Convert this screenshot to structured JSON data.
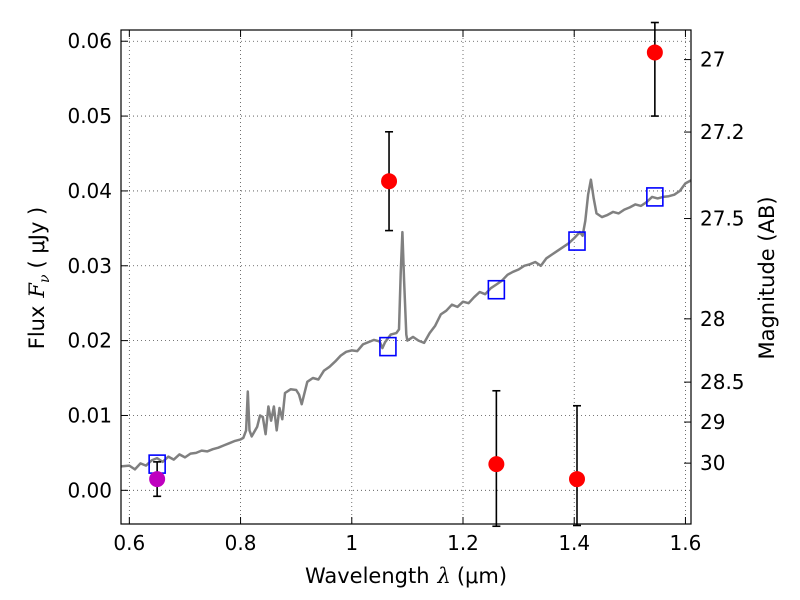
{
  "chart_data": {
    "type": "scatter",
    "xlabel": "Wavelength",
    "xlabel_symbol": "λ",
    "xlabel_unit": "(μm)",
    "ylabel_prefix": "Flux",
    "ylabel_symbol": "F",
    "ylabel_subscript": "ν",
    "ylabel_unit": "( μJy )",
    "ylabel_right": "Magnitude (AB)",
    "xlim": [
      0.585,
      1.61
    ],
    "ylim": [
      -0.0045,
      0.0615
    ],
    "grid": true,
    "xticks": [
      {
        "value": 0.6,
        "label": "0.6"
      },
      {
        "value": 0.8,
        "label": "0.8"
      },
      {
        "value": 1.0,
        "label": "1"
      },
      {
        "value": 1.2,
        "label": "1.2"
      },
      {
        "value": 1.4,
        "label": "1.4"
      },
      {
        "value": 1.6,
        "label": "1.6"
      }
    ],
    "yticks": [
      {
        "value": 0.0,
        "label": "0.00"
      },
      {
        "value": 0.01,
        "label": "0.01"
      },
      {
        "value": 0.02,
        "label": "0.02"
      },
      {
        "value": 0.03,
        "label": "0.03"
      },
      {
        "value": 0.04,
        "label": "0.04"
      },
      {
        "value": 0.05,
        "label": "0.05"
      },
      {
        "value": 0.06,
        "label": "0.06"
      }
    ],
    "right_ticks": [
      {
        "value": 27,
        "label": "27"
      },
      {
        "value": 27.2,
        "label": "27.2"
      },
      {
        "value": 27.5,
        "label": "27.5"
      },
      {
        "value": 28,
        "label": "28"
      },
      {
        "value": 28.5,
        "label": "28.5"
      },
      {
        "value": 29,
        "label": "29"
      },
      {
        "value": 30,
        "label": "30"
      }
    ],
    "model_spectrum": {
      "color": "#808080",
      "points": [
        [
          0.585,
          0.0032
        ],
        [
          0.6,
          0.0033
        ],
        [
          0.61,
          0.0028
        ],
        [
          0.62,
          0.0036
        ],
        [
          0.63,
          0.0033
        ],
        [
          0.64,
          0.004
        ],
        [
          0.65,
          0.0043
        ],
        [
          0.66,
          0.0038
        ],
        [
          0.67,
          0.0045
        ],
        [
          0.68,
          0.0041
        ],
        [
          0.69,
          0.0048
        ],
        [
          0.7,
          0.0044
        ],
        [
          0.71,
          0.0049
        ],
        [
          0.72,
          0.005
        ],
        [
          0.73,
          0.0053
        ],
        [
          0.74,
          0.0052
        ],
        [
          0.75,
          0.0055
        ],
        [
          0.76,
          0.0057
        ],
        [
          0.77,
          0.006
        ],
        [
          0.78,
          0.0063
        ],
        [
          0.79,
          0.0066
        ],
        [
          0.8,
          0.0068
        ],
        [
          0.805,
          0.007
        ],
        [
          0.81,
          0.008
        ],
        [
          0.813,
          0.0132
        ],
        [
          0.816,
          0.008
        ],
        [
          0.82,
          0.0072
        ],
        [
          0.83,
          0.0085
        ],
        [
          0.835,
          0.01
        ],
        [
          0.84,
          0.0098
        ],
        [
          0.845,
          0.0075
        ],
        [
          0.85,
          0.0112
        ],
        [
          0.855,
          0.0093
        ],
        [
          0.86,
          0.0112
        ],
        [
          0.865,
          0.008
        ],
        [
          0.87,
          0.011
        ],
        [
          0.875,
          0.0095
        ],
        [
          0.88,
          0.013
        ],
        [
          0.89,
          0.0135
        ],
        [
          0.9,
          0.0134
        ],
        [
          0.905,
          0.0128
        ],
        [
          0.91,
          0.0115
        ],
        [
          0.92,
          0.0145
        ],
        [
          0.93,
          0.015
        ],
        [
          0.94,
          0.0148
        ],
        [
          0.95,
          0.016
        ],
        [
          0.96,
          0.0165
        ],
        [
          0.97,
          0.0172
        ],
        [
          0.98,
          0.018
        ],
        [
          0.99,
          0.0185
        ],
        [
          1.0,
          0.0187
        ],
        [
          1.01,
          0.0186
        ],
        [
          1.02,
          0.0195
        ],
        [
          1.03,
          0.0198
        ],
        [
          1.04,
          0.0201
        ],
        [
          1.05,
          0.0199
        ],
        [
          1.055,
          0.019
        ],
        [
          1.06,
          0.0198
        ],
        [
          1.07,
          0.0208
        ],
        [
          1.08,
          0.021
        ],
        [
          1.085,
          0.0215
        ],
        [
          1.088,
          0.029
        ],
        [
          1.091,
          0.0345
        ],
        [
          1.094,
          0.028
        ],
        [
          1.098,
          0.0208
        ],
        [
          1.1,
          0.02
        ],
        [
          1.11,
          0.0205
        ],
        [
          1.12,
          0.02
        ],
        [
          1.13,
          0.0197
        ],
        [
          1.14,
          0.021
        ],
        [
          1.15,
          0.022
        ],
        [
          1.16,
          0.0235
        ],
        [
          1.17,
          0.024
        ],
        [
          1.18,
          0.0248
        ],
        [
          1.19,
          0.0245
        ],
        [
          1.2,
          0.0252
        ],
        [
          1.21,
          0.025
        ],
        [
          1.22,
          0.0258
        ],
        [
          1.23,
          0.0265
        ],
        [
          1.24,
          0.0262
        ],
        [
          1.25,
          0.027
        ],
        [
          1.26,
          0.0275
        ],
        [
          1.27,
          0.028
        ],
        [
          1.28,
          0.0288
        ],
        [
          1.29,
          0.0292
        ],
        [
          1.3,
          0.0295
        ],
        [
          1.31,
          0.03
        ],
        [
          1.32,
          0.0302
        ],
        [
          1.33,
          0.0305
        ],
        [
          1.34,
          0.03
        ],
        [
          1.35,
          0.031
        ],
        [
          1.36,
          0.0315
        ],
        [
          1.37,
          0.032
        ],
        [
          1.38,
          0.0325
        ],
        [
          1.39,
          0.033
        ],
        [
          1.4,
          0.0337
        ],
        [
          1.41,
          0.0345
        ],
        [
          1.415,
          0.034
        ],
        [
          1.42,
          0.036
        ],
        [
          1.425,
          0.0395
        ],
        [
          1.43,
          0.0415
        ],
        [
          1.435,
          0.039
        ],
        [
          1.44,
          0.037
        ],
        [
          1.45,
          0.0365
        ],
        [
          1.46,
          0.0368
        ],
        [
          1.47,
          0.0372
        ],
        [
          1.48,
          0.037
        ],
        [
          1.49,
          0.0375
        ],
        [
          1.5,
          0.0378
        ],
        [
          1.51,
          0.0382
        ],
        [
          1.52,
          0.038
        ],
        [
          1.53,
          0.0385
        ],
        [
          1.54,
          0.0392
        ],
        [
          1.55,
          0.039
        ],
        [
          1.56,
          0.0392
        ],
        [
          1.57,
          0.0393
        ],
        [
          1.58,
          0.0395
        ],
        [
          1.59,
          0.04
        ],
        [
          1.6,
          0.041
        ],
        [
          1.61,
          0.0414
        ]
      ]
    },
    "model_photometry": {
      "marker": "open-square",
      "color": "#0000ff",
      "points": [
        {
          "x": 0.65,
          "y": 0.0035
        },
        {
          "x": 1.065,
          "y": 0.0192
        },
        {
          "x": 1.26,
          "y": 0.0268
        },
        {
          "x": 1.405,
          "y": 0.0333
        },
        {
          "x": 1.545,
          "y": 0.0392
        }
      ]
    },
    "observed": [
      {
        "x": 0.65,
        "y": 0.0015,
        "err_low": 0.0023,
        "err_high": 0.0023,
        "color": "#bf00bf"
      },
      {
        "x": 1.067,
        "y": 0.0413,
        "err_low": 0.0066,
        "err_high": 0.0066,
        "color": "#ff0000"
      },
      {
        "x": 1.26,
        "y": 0.0035,
        "err_low": 0.0083,
        "err_high": 0.0098,
        "color": "#ff0000"
      },
      {
        "x": 1.405,
        "y": 0.0015,
        "err_low": 0.0062,
        "err_high": 0.0098,
        "color": "#ff0000"
      },
      {
        "x": 1.545,
        "y": 0.0585,
        "err_low": 0.0085,
        "err_high": 0.004,
        "color": "#ff0000"
      }
    ]
  }
}
